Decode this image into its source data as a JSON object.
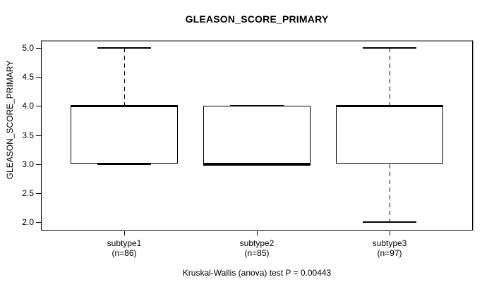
{
  "figure": {
    "title": "GLEASON_SCORE_PRIMARY",
    "y_axis_label": "GLEASON_SCORE_PRIMARY",
    "footer": "Kruskal-Wallis (anova) test P = 0.00443"
  },
  "colors": {
    "line": "#000000",
    "background": "#ffffff",
    "border_shadow": "#8a8a8a"
  },
  "chart_data": {
    "type": "boxplot",
    "title": "GLEASON_SCORE_PRIMARY",
    "xlabel": "",
    "ylabel": "GLEASON_SCORE_PRIMARY",
    "ylim": [
      2.0,
      5.0
    ],
    "yticks": [
      5.0,
      4.5,
      4.0,
      3.5,
      3.0,
      2.5,
      2.0
    ],
    "ytick_labels": [
      "5.0",
      "4.5",
      "4.0",
      "3.5",
      "3.0",
      "2.5",
      "2.0"
    ],
    "grid": false,
    "legend": "none",
    "annotation": "Kruskal-Wallis (anova) test P = 0.00443",
    "groups": [
      {
        "label": "subtype1",
        "sublabel": "(n=86)",
        "n": 86,
        "q1": 3.0,
        "median": 4.0,
        "q3": 4.0,
        "whisker_low": 3.0,
        "whisker_high": 5.0
      },
      {
        "label": "subtype2",
        "sublabel": "(n=85)",
        "n": 85,
        "q1": 3.0,
        "median": 3.0,
        "q3": 4.0,
        "whisker_low": 3.0,
        "whisker_high": 4.0
      },
      {
        "label": "subtype3",
        "sublabel": "(n=97)",
        "n": 97,
        "q1": 3.0,
        "median": 4.0,
        "q3": 4.0,
        "whisker_low": 2.0,
        "whisker_high": 5.0
      }
    ]
  }
}
